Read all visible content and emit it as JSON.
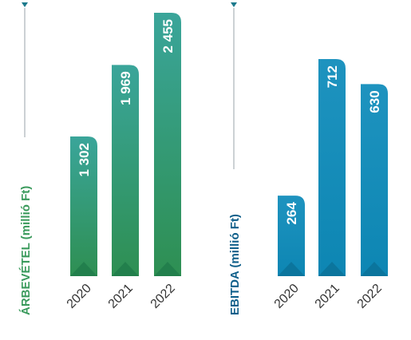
{
  "chart_data": [
    {
      "type": "bar",
      "ylabel": "ÁRBEVÉTEL (millió Ft)",
      "categories": [
        "2020",
        "2021",
        "2022"
      ],
      "values": [
        1302,
        1969,
        2455
      ],
      "value_labels": [
        "1 302",
        "1 969",
        "2 455"
      ],
      "ylim": [
        0,
        2455
      ],
      "grid": false,
      "colors": {
        "label": "#3a9a5c",
        "bar_top": "#3aa59a",
        "bar_bottom": "#2e8f52",
        "accent": "#1f7a49",
        "marker": "#1c7a8c"
      }
    },
    {
      "type": "bar",
      "ylabel": "EBITDA (millió Ft)",
      "categories": [
        "2020",
        "2021",
        "2022"
      ],
      "values": [
        264,
        712,
        630
      ],
      "value_labels": [
        "264",
        "712",
        "630"
      ],
      "ylim": [
        0,
        712
      ],
      "grid": false,
      "colors": {
        "label": "#0f5f8a",
        "bar_top": "#1e93bf",
        "bar_bottom": "#0d86b3",
        "accent": "#0b6f95",
        "marker": "#1c7a8c"
      }
    }
  ]
}
